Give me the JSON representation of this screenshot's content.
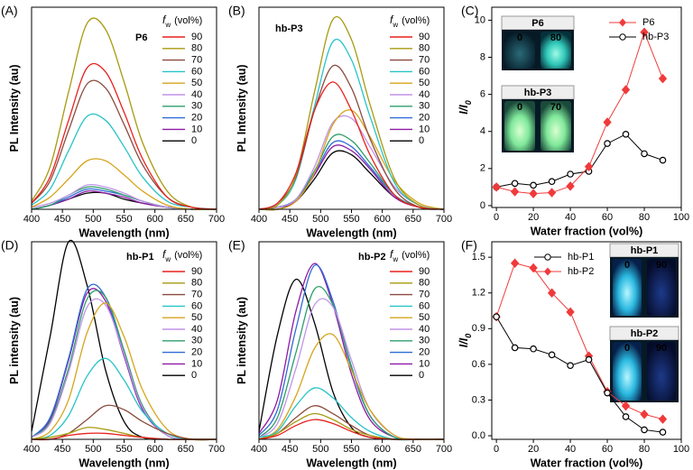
{
  "chart_data": [
    {
      "type": "line",
      "panel": "(A)",
      "label": "P6",
      "xlabel": "Wavelength (nm)",
      "ylabel": "PL Intensity (au)",
      "legend_title": [
        "f",
        "w",
        "(vol%)"
      ],
      "x": [
        400,
        430,
        460,
        490,
        520,
        550,
        580,
        620,
        660,
        700
      ],
      "xlim": [
        400,
        700
      ],
      "xticks": [
        400,
        450,
        500,
        550,
        600,
        650,
        700
      ],
      "ylim": [
        0,
        100
      ],
      "series": [
        {
          "name": "90",
          "color": "#e8211d",
          "values": [
            3,
            16,
            44,
            70,
            68,
            48,
            25,
            6,
            1,
            0
          ]
        },
        {
          "name": "80",
          "color": "#a89a10",
          "values": [
            4,
            21,
            58,
            92,
            89,
            63,
            33,
            9,
            1,
            0
          ]
        },
        {
          "name": "70",
          "color": "#8b4b3e",
          "values": [
            3,
            14,
            39,
            62,
            60,
            42,
            22,
            6,
            1,
            0
          ]
        },
        {
          "name": "60",
          "color": "#27c3c8",
          "values": [
            2,
            10,
            29,
            46,
            44,
            31,
            16,
            4,
            1,
            0
          ]
        },
        {
          "name": "50",
          "color": "#d6a51c",
          "values": [
            1,
            6,
            15,
            24,
            24,
            17,
            9,
            2,
            0,
            0
          ]
        },
        {
          "name": "40",
          "color": "#c194e8",
          "values": [
            1,
            3,
            7,
            12,
            11,
            8,
            4,
            1,
            0,
            0
          ]
        },
        {
          "name": "30",
          "color": "#2e9e6b",
          "values": [
            0,
            2,
            7,
            11,
            10,
            7,
            4,
            1,
            0,
            0
          ]
        },
        {
          "name": "20",
          "color": "#2f6bd6",
          "values": [
            0,
            2,
            6,
            10,
            9,
            7,
            4,
            1,
            0,
            0
          ]
        },
        {
          "name": "10",
          "color": "#8e1aa6",
          "values": [
            0,
            2,
            5,
            9,
            8,
            6,
            3,
            1,
            0,
            0
          ]
        },
        {
          "name": "0",
          "color": "#000000",
          "values": [
            0,
            2,
            5,
            8,
            8,
            5,
            3,
            1,
            0,
            0
          ]
        }
      ]
    },
    {
      "type": "line",
      "panel": "(B)",
      "label": "hb-P3",
      "xlabel": "Wavelength (nm)",
      "ylabel": "PL Intensity (au)",
      "legend_title": [
        "f",
        "w",
        "(vol%)"
      ],
      "x": [
        400,
        430,
        460,
        490,
        520,
        550,
        580,
        620,
        660,
        700
      ],
      "xlim": [
        400,
        700
      ],
      "xticks": [
        400,
        450,
        500,
        550,
        600,
        650,
        700
      ],
      "ylim": [
        0,
        100
      ],
      "series": [
        {
          "name": "90",
          "color": "#e8211d",
          "values": [
            0,
            3,
            18,
            49,
            63,
            49,
            27,
            7,
            1,
            0
          ]
        },
        {
          "name": "80",
          "color": "#a89a10",
          "values": [
            0,
            2,
            17,
            58,
            94,
            84,
            52,
            15,
            2,
            0
          ]
        },
        {
          "name": "70",
          "color": "#8b4b3e",
          "values": [
            0,
            3,
            16,
            49,
            71,
            60,
            35,
            10,
            1,
            0
          ]
        },
        {
          "name": "60",
          "color": "#27c3c8",
          "values": [
            0,
            2,
            15,
            51,
            83,
            74,
            46,
            13,
            2,
            0
          ]
        },
        {
          "name": "50",
          "color": "#d6a51c",
          "values": [
            0,
            0,
            4,
            18,
            42,
            49,
            36,
            14,
            3,
            0
          ]
        },
        {
          "name": "40",
          "color": "#c194e8",
          "values": [
            0,
            1,
            5,
            21,
            43,
            45,
            31,
            11,
            2,
            0
          ]
        },
        {
          "name": "30",
          "color": "#2e9e6b",
          "values": [
            0,
            1,
            5,
            19,
            36,
            34,
            23,
            7,
            1,
            0
          ]
        },
        {
          "name": "20",
          "color": "#2f6bd6",
          "values": [
            0,
            1,
            5,
            18,
            33,
            31,
            21,
            7,
            1,
            0
          ]
        },
        {
          "name": "10",
          "color": "#8e1aa6",
          "values": [
            0,
            1,
            4,
            17,
            31,
            29,
            20,
            6,
            1,
            0
          ]
        },
        {
          "name": "0",
          "color": "#000000",
          "values": [
            0,
            0,
            4,
            15,
            28,
            27,
            18,
            6,
            1,
            0
          ]
        }
      ]
    },
    {
      "type": "line",
      "panel": "(C)",
      "xlabel": "Water fraction (vol%)",
      "ylabel": "I/I",
      "ylabel_sub": "0",
      "legend_corner": "upper right",
      "x": [
        0,
        10,
        20,
        30,
        40,
        50,
        60,
        70,
        80,
        90
      ],
      "xlim": [
        -2.5,
        100
      ],
      "xticks": [
        0,
        20,
        40,
        60,
        80,
        100
      ],
      "ylim": [
        -0.1,
        10.7
      ],
      "yticks": [
        0,
        2,
        4,
        6,
        8,
        10
      ],
      "series": [
        {
          "name": "P6",
          "color": "#f03a3a",
          "marker": "diamond",
          "values": [
            1,
            0.75,
            0.65,
            0.7,
            1.05,
            2.1,
            4.5,
            6.25,
            9.35,
            6.85
          ]
        },
        {
          "name": "hb-P3",
          "color": "#000000",
          "marker": "circle",
          "values": [
            1,
            1.2,
            1.1,
            1.3,
            1.7,
            1.85,
            3.35,
            3.85,
            2.8,
            2.45
          ]
        }
      ],
      "insets": [
        {
          "title": "P6",
          "labels": [
            "0",
            "80"
          ]
        },
        {
          "title": "hb-P3",
          "labels": [
            "0",
            "70"
          ]
        }
      ]
    },
    {
      "type": "line",
      "panel": "(D)",
      "label": "hb-P1",
      "xlabel": "Wavelength (nm)",
      "ylabel": "PL intensity (au)",
      "legend_title": [
        "f",
        "w",
        "(vol%)"
      ],
      "x": [
        400,
        430,
        460,
        490,
        520,
        550,
        580,
        620,
        660,
        700
      ],
      "xlim": [
        400,
        700
      ],
      "xticks": [
        400,
        450,
        500,
        550,
        600,
        650,
        700
      ],
      "ylim": [
        0,
        100
      ],
      "series": [
        {
          "name": "90",
          "color": "#e8211d",
          "values": [
            0,
            0,
            2,
            3,
            3,
            2,
            1,
            0,
            0,
            0
          ]
        },
        {
          "name": "80",
          "color": "#a89a10",
          "values": [
            0,
            1,
            3,
            6,
            5,
            3,
            1,
            0,
            0,
            0
          ]
        },
        {
          "name": "70",
          "color": "#8b4b3e",
          "values": [
            0,
            0,
            3,
            10,
            17,
            15,
            9,
            3,
            0,
            0
          ]
        },
        {
          "name": "60",
          "color": "#27c3c8",
          "values": [
            0,
            2,
            12,
            32,
            41,
            30,
            14,
            3,
            0,
            0
          ]
        },
        {
          "name": "50",
          "color": "#d6a51c",
          "values": [
            0,
            4,
            20,
            54,
            69,
            52,
            25,
            5,
            0,
            0
          ]
        },
        {
          "name": "40",
          "color": "#c194e8",
          "values": [
            1,
            8,
            34,
            67,
            68,
            43,
            16,
            2,
            0,
            0
          ]
        },
        {
          "name": "30",
          "color": "#2e9e6b",
          "values": [
            1,
            9,
            36,
            71,
            72,
            45,
            17,
            2,
            0,
            0
          ]
        },
        {
          "name": "20",
          "color": "#2f6bd6",
          "values": [
            1,
            11,
            41,
            76,
            72,
            43,
            16,
            2,
            0,
            0
          ]
        },
        {
          "name": "10",
          "color": "#8e1aa6",
          "values": [
            1,
            10,
            40,
            74,
            70,
            42,
            15,
            2,
            0,
            0
          ]
        },
        {
          "name": "0",
          "color": "#000000",
          "values": [
            4,
            52,
            100,
            78,
            35,
            9,
            1,
            0,
            0,
            0
          ]
        }
      ]
    },
    {
      "type": "line",
      "panel": "(E)",
      "label": "hb-P2",
      "xlabel": "Wavelength (nm)",
      "ylabel": "PL intensity (au)",
      "legend_title": [
        "f",
        "w",
        "(vol%)"
      ],
      "x": [
        400,
        430,
        460,
        490,
        520,
        550,
        580,
        620,
        660,
        700
      ],
      "xlim": [
        400,
        700
      ],
      "xticks": [
        400,
        450,
        500,
        550,
        600,
        650,
        700
      ],
      "ylim": [
        0,
        100
      ],
      "series": [
        {
          "name": "90",
          "color": "#e8211d",
          "values": [
            0,
            2,
            7,
            10,
            8,
            4,
            1,
            0,
            0,
            0
          ]
        },
        {
          "name": "80",
          "color": "#a89a10",
          "values": [
            0,
            3,
            9,
            13,
            10,
            5,
            2,
            0,
            0,
            0
          ]
        },
        {
          "name": "70",
          "color": "#8b4b3e",
          "values": [
            0,
            3,
            11,
            17,
            13,
            7,
            2,
            0,
            0,
            0
          ]
        },
        {
          "name": "60",
          "color": "#27c3c8",
          "values": [
            1,
            4,
            17,
            26,
            21,
            11,
            4,
            0,
            0,
            0
          ]
        },
        {
          "name": "50",
          "color": "#d6a51c",
          "values": [
            0,
            5,
            22,
            46,
            53,
            35,
            15,
            2,
            0,
            0
          ]
        },
        {
          "name": "40",
          "color": "#c194e8",
          "values": [
            1,
            8,
            36,
            68,
            67,
            40,
            15,
            2,
            0,
            0
          ]
        },
        {
          "name": "30",
          "color": "#2e9e6b",
          "values": [
            1,
            11,
            44,
            76,
            68,
            37,
            12,
            1,
            0,
            0
          ]
        },
        {
          "name": "20",
          "color": "#2f6bd6",
          "values": [
            2,
            15,
            56,
            88,
            70,
            36,
            12,
            1,
            0,
            0
          ]
        },
        {
          "name": "10",
          "color": "#8e1aa6",
          "values": [
            3,
            20,
            65,
            89,
            68,
            33,
            10,
            1,
            0,
            0
          ]
        },
        {
          "name": "0",
          "color": "#000000",
          "values": [
            4,
            53,
            81,
            59,
            24,
            6,
            1,
            0,
            0,
            0
          ]
        }
      ]
    },
    {
      "type": "line",
      "panel": "(F)",
      "xlabel": "Water fraction (vol%)",
      "ylabel": "I/I",
      "ylabel_sub": "0",
      "legend_corner": "upper left",
      "x": [
        0,
        10,
        20,
        30,
        40,
        50,
        60,
        70,
        80,
        90
      ],
      "xlim": [
        -2.5,
        100
      ],
      "xticks": [
        0,
        20,
        40,
        60,
        80,
        100
      ],
      "ylim": [
        -0.03,
        1.63
      ],
      "yticks": [
        {
          "value": 0,
          "label": "0.0"
        },
        0.3,
        0.6,
        0.9,
        1.2,
        1.5
      ],
      "series": [
        {
          "name": "hb-P1",
          "color": "#000000",
          "marker": "circle",
          "values": [
            1,
            0.74,
            0.73,
            0.68,
            0.59,
            0.64,
            0.36,
            0.16,
            0.05,
            0.03
          ]
        },
        {
          "name": "hb-P2",
          "color": "#f03a3a",
          "marker": "diamond",
          "values": [
            1,
            1.45,
            1.41,
            1.2,
            1.04,
            0.67,
            0.37,
            0.25,
            0.18,
            0.14
          ]
        }
      ],
      "insets": [
        {
          "title": "hb-P1",
          "labels": [
            "0",
            "90"
          ]
        },
        {
          "title": "hb-P2",
          "labels": [
            "0",
            "90"
          ]
        }
      ]
    }
  ]
}
